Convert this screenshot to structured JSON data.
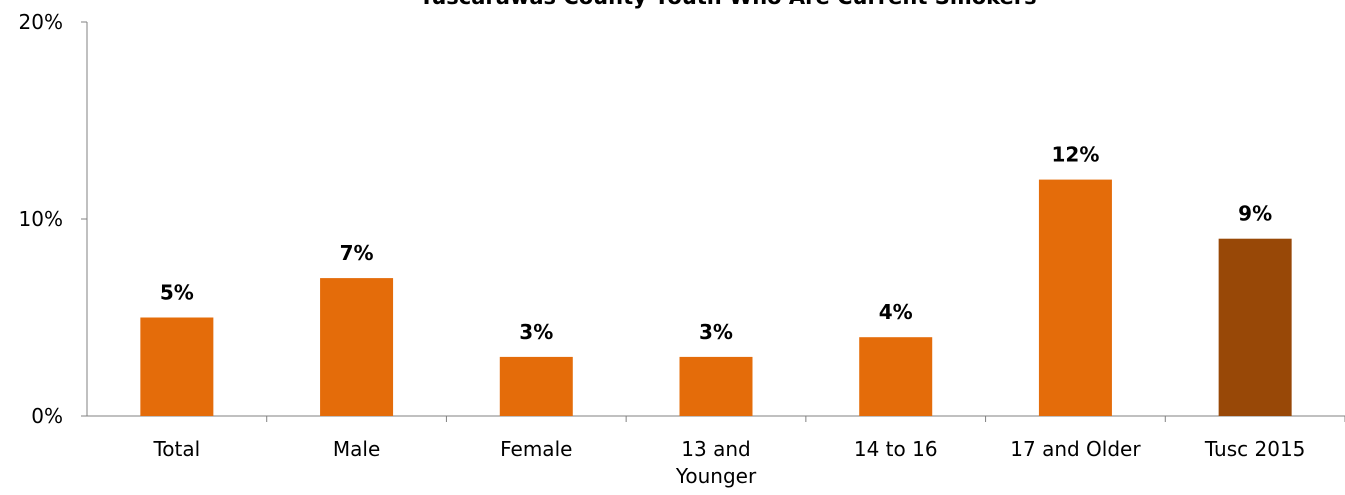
{
  "chart_data": {
    "type": "bar",
    "title": "Tuscarawas County Youth Who Are Current Smokers",
    "categories": [
      "Total",
      "Male",
      "Female",
      "13 and Younger",
      "14 to 16",
      "17 and Older",
      "Tusc 2015"
    ],
    "values": [
      5,
      7,
      3,
      3,
      4,
      12,
      9
    ],
    "data_labels": [
      "5%",
      "7%",
      "3%",
      "3%",
      "4%",
      "12%",
      "9%"
    ],
    "ylim": [
      0,
      20
    ],
    "yticks": [
      0,
      10,
      20
    ],
    "ytick_labels": [
      "0%",
      "10%",
      "20%"
    ],
    "xlabel": "",
    "ylabel": "",
    "grid": false,
    "legend": "none",
    "colors": {
      "default_bar": "#E46C0A",
      "highlight_bar": "#984807",
      "highlight_index": 6
    }
  }
}
